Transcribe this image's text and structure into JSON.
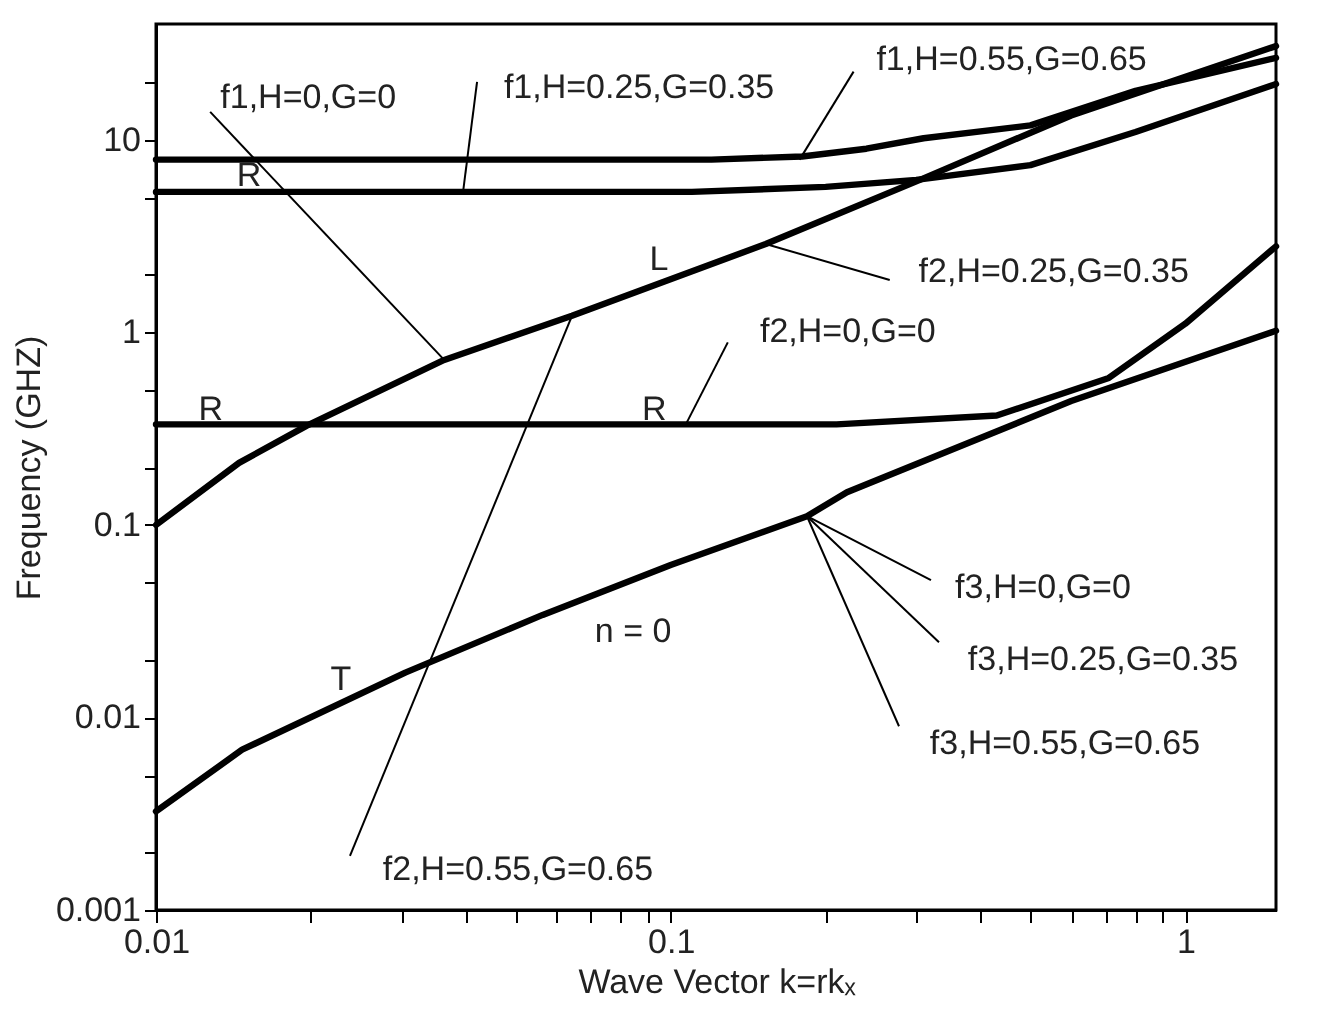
{
  "chart_data": {
    "type": "line",
    "xlabel": "Wave Vector k=rkₓ",
    "ylabel": "Frequency (GHZ)",
    "log": "xy",
    "grid": false,
    "marker": "none",
    "line_style": "solid",
    "xlim": [
      0.01,
      1.5
    ],
    "ylim": [
      0.001,
      40
    ],
    "xticks": [
      0.01,
      {
        "value": 0.02,
        "label": null
      },
      {
        "value": 0.03,
        "label": null
      },
      {
        "value": 0.04,
        "label": null
      },
      {
        "value": 0.05,
        "label": null
      },
      {
        "value": 0.06,
        "label": null
      },
      {
        "value": 0.07,
        "label": null
      },
      {
        "value": 0.08,
        "label": null
      },
      {
        "value": 0.09,
        "label": null
      },
      0.1,
      {
        "value": 0.2,
        "label": null
      },
      {
        "value": 0.3,
        "label": null
      },
      {
        "value": 0.4,
        "label": null
      },
      {
        "value": 0.5,
        "label": null
      },
      {
        "value": 0.6,
        "label": null
      },
      {
        "value": 0.7,
        "label": null
      },
      {
        "value": 0.8,
        "label": null
      },
      {
        "value": 0.9,
        "label": null
      },
      1
    ],
    "yticks": [
      0.001,
      {
        "value": 0.002,
        "label": null
      },
      {
        "value": 0.005,
        "label": null
      },
      0.01,
      {
        "value": 0.02,
        "label": null
      },
      {
        "value": 0.05,
        "label": null
      },
      0.1,
      {
        "value": 0.2,
        "label": null
      },
      {
        "value": 0.5,
        "label": null
      },
      1,
      {
        "value": 2,
        "label": null
      },
      {
        "value": 5,
        "label": null
      },
      10,
      {
        "value": 20,
        "label": null
      }
    ],
    "series": [
      {
        "color": "#000000",
        "x": [
          0.01,
          0.12,
          0.18,
          0.24,
          0.31,
          0.5,
          0.8,
          1.5
        ],
        "values": [
          7.9,
          7.9,
          8.2,
          9.0,
          10.2,
          11.9,
          18,
          26.7
        ]
      },
      {
        "color": "#000000",
        "x": [
          0.01,
          0.11,
          0.2,
          0.3,
          0.5,
          0.8,
          1.5
        ],
        "values": [
          5.37,
          5.37,
          5.7,
          6.2,
          7.4,
          11,
          19.5
        ]
      },
      {
        "color": "#000000",
        "x": [
          0.01,
          0.0145,
          0.0196,
          0.0363,
          0.0643,
          0.153,
          0.305,
          0.6,
          1.5
        ],
        "values": [
          0.1,
          0.21,
          0.327,
          0.72,
          1.22,
          2.88,
          6.2,
          13.4,
          30.7
        ]
      },
      {
        "color": "#000000",
        "x": [
          0.01,
          0.21,
          0.43,
          0.71,
          1.0,
          1.5
        ],
        "values": [
          0.333,
          0.333,
          0.37,
          0.58,
          1.11,
          2.8
        ]
      },
      {
        "color": "#000000",
        "x": [
          0.01,
          0.0147,
          0.0305,
          0.0564,
          0.1,
          0.184,
          0.22,
          0.6,
          1.5
        ],
        "values": [
          0.00325,
          0.0068,
          0.0171,
          0.0341,
          0.062,
          0.111,
          0.148,
          0.44,
          1.02
        ]
      }
    ],
    "annotations": [
      {
        "text": "f1,H=0,G=0",
        "x": 0.0363,
        "y": 0.72
      },
      {
        "text": "f1,H=0.25,G=0.35",
        "x": 0.0395,
        "y": 5.37
      },
      {
        "text": "f1,H=0.55,G=0.65",
        "x": 0.178,
        "y": 7.9
      },
      {
        "text": "f2,H=0.25,G=0.35",
        "x": 0.153,
        "y": 2.88
      },
      {
        "text": "f2,H=0,G=0",
        "x": 0.107,
        "y": 0.333
      },
      {
        "text": "f2,H=0.55,G=0.65",
        "x": 0.0643,
        "y": 1.22
      },
      {
        "text": "f3,H=0,G=0",
        "x": 0.184,
        "y": 0.111
      },
      {
        "text": "f3,H=0.25,G=0.35",
        "x": 0.184,
        "y": 0.111
      },
      {
        "text": "f3,H=0.55,G=0.65",
        "x": 0.184,
        "y": 0.111
      },
      "R",
      "R",
      "R",
      "L",
      "T",
      "n = 0"
    ]
  }
}
